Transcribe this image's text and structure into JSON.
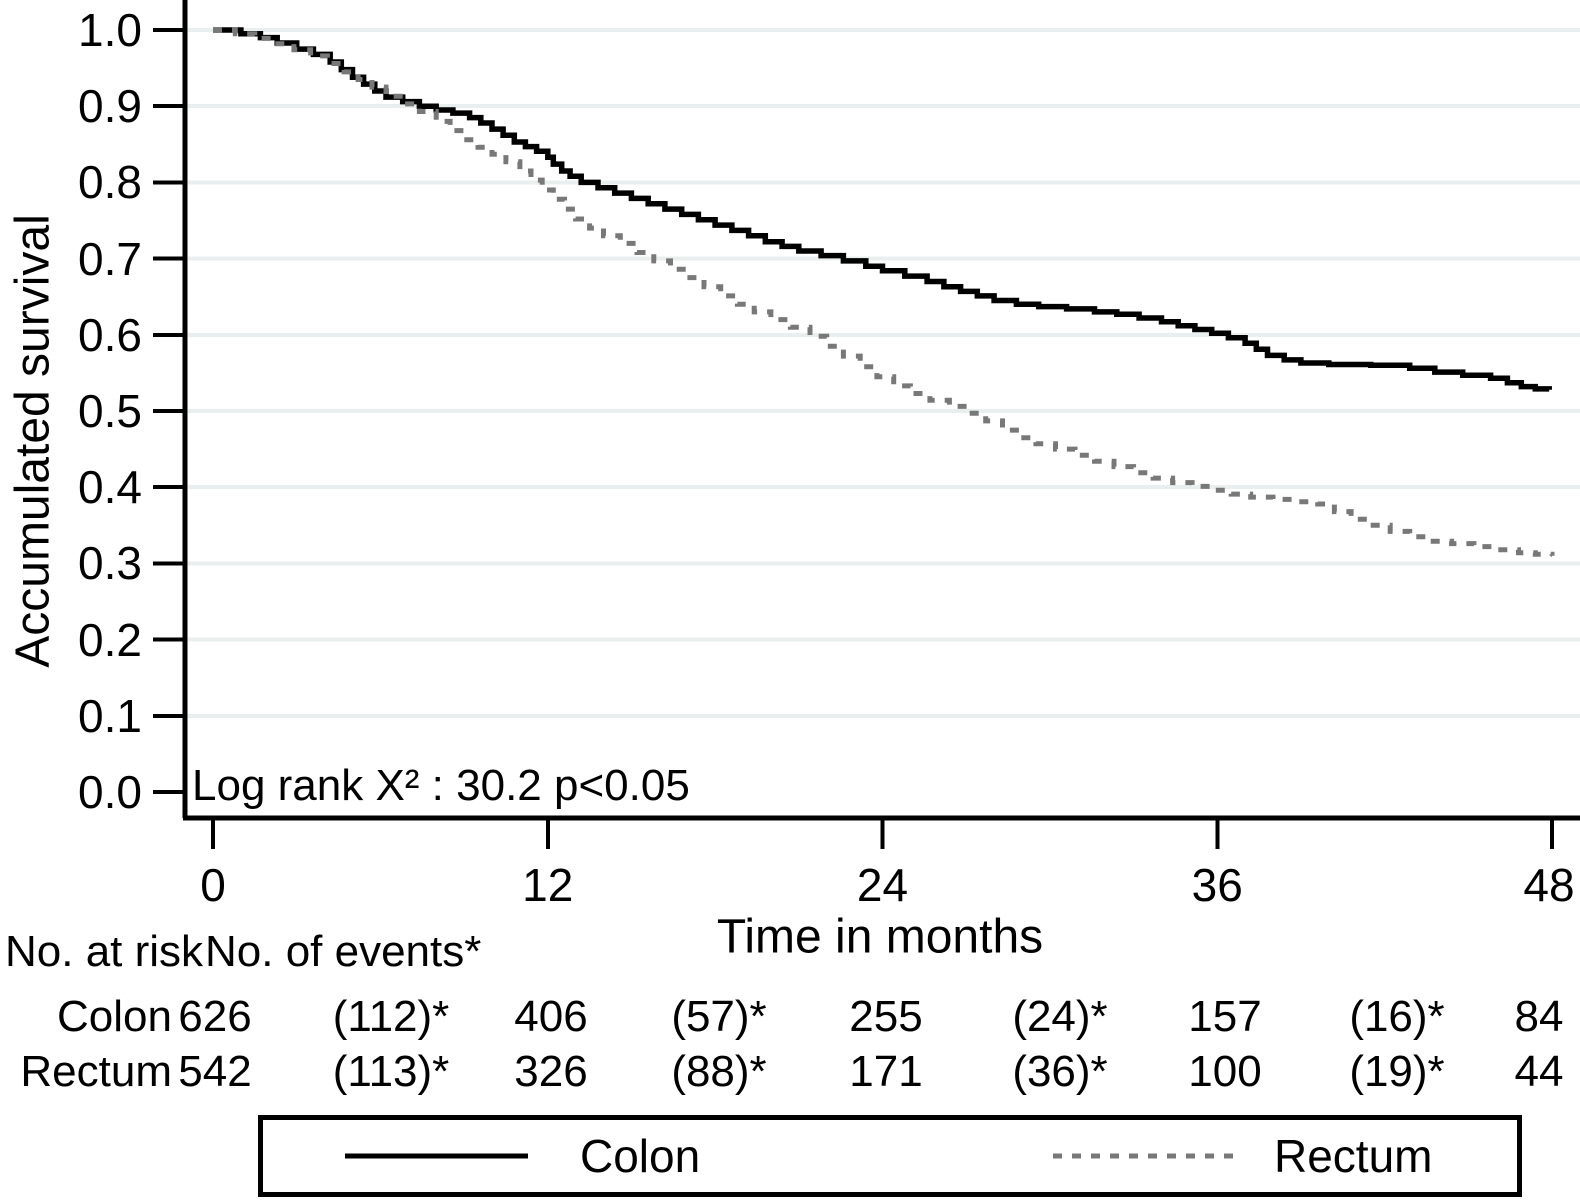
{
  "chart_data": {
    "type": "line",
    "subtype": "kaplan-meier-step-curves",
    "title": "",
    "ylabel": "Accumulated survival",
    "xlabel": "Time in months",
    "annotation": "Log rank X² : 30.2  p<0.05",
    "y_ticks": [
      "0.0",
      "0.1",
      "0.2",
      "0.3",
      "0.4",
      "0.5",
      "0.6",
      "0.7",
      "0.8",
      "0.9",
      "1.0"
    ],
    "y_tick_values": [
      0,
      0.1,
      0.2,
      0.3,
      0.4,
      0.5,
      0.6,
      0.7,
      0.8,
      0.9,
      1.0
    ],
    "x_ticks": [
      "0",
      "12",
      "24",
      "36",
      "48"
    ],
    "x_tick_values": [
      0,
      12,
      24,
      36,
      48
    ],
    "xlim": [
      0,
      48
    ],
    "ylim": [
      0,
      1.0
    ],
    "grid": "horizontal",
    "gridline_color": "#e9efee",
    "axis_color": "#000000",
    "legend_position": "bottom-box",
    "series": [
      {
        "name": "Colon",
        "line_style": "solid",
        "color": "#000000",
        "points": [
          [
            0,
            1
          ],
          [
            1,
            0.995
          ],
          [
            1.7,
            0.99
          ],
          [
            2.3,
            0.983
          ],
          [
            3,
            0.975
          ],
          [
            3.6,
            0.968
          ],
          [
            4.2,
            0.958
          ],
          [
            4.6,
            0.948
          ],
          [
            5,
            0.938
          ],
          [
            5.4,
            0.929
          ],
          [
            5.8,
            0.92
          ],
          [
            6.2,
            0.912
          ],
          [
            6.8,
            0.906
          ],
          [
            7.4,
            0.9
          ],
          [
            8,
            0.895
          ],
          [
            8.6,
            0.891
          ],
          [
            9.2,
            0.885
          ],
          [
            9.6,
            0.878
          ],
          [
            10,
            0.87
          ],
          [
            10.4,
            0.862
          ],
          [
            10.8,
            0.853
          ],
          [
            11.2,
            0.847
          ],
          [
            11.6,
            0.841
          ],
          [
            12,
            0.833
          ],
          [
            12.2,
            0.824
          ],
          [
            12.5,
            0.815
          ],
          [
            12.8,
            0.808
          ],
          [
            13.2,
            0.8
          ],
          [
            13.8,
            0.793
          ],
          [
            14.4,
            0.786
          ],
          [
            15,
            0.779
          ],
          [
            15.6,
            0.772
          ],
          [
            16.2,
            0.765
          ],
          [
            16.8,
            0.758
          ],
          [
            17.4,
            0.751
          ],
          [
            18,
            0.744
          ],
          [
            18.6,
            0.737
          ],
          [
            19.2,
            0.73
          ],
          [
            19.8,
            0.722
          ],
          [
            20.4,
            0.716
          ],
          [
            21,
            0.71
          ],
          [
            21.8,
            0.704
          ],
          [
            22.6,
            0.697
          ],
          [
            23.4,
            0.69
          ],
          [
            24,
            0.684
          ],
          [
            24.8,
            0.677
          ],
          [
            25.6,
            0.67
          ],
          [
            26.2,
            0.663
          ],
          [
            26.8,
            0.657
          ],
          [
            27.4,
            0.651
          ],
          [
            28,
            0.645
          ],
          [
            28.8,
            0.64
          ],
          [
            29.6,
            0.637
          ],
          [
            30.6,
            0.634
          ],
          [
            31.6,
            0.63
          ],
          [
            32.4,
            0.627
          ],
          [
            33.2,
            0.622
          ],
          [
            34,
            0.617
          ],
          [
            34.6,
            0.612
          ],
          [
            35.2,
            0.607
          ],
          [
            35.8,
            0.602
          ],
          [
            36.4,
            0.596
          ],
          [
            37,
            0.589
          ],
          [
            37.4,
            0.581
          ],
          [
            37.8,
            0.573
          ],
          [
            38.4,
            0.567
          ],
          [
            39,
            0.563
          ],
          [
            40,
            0.561
          ],
          [
            41.5,
            0.56
          ],
          [
            42.9,
            0.556
          ],
          [
            43.8,
            0.551
          ],
          [
            44.8,
            0.547
          ],
          [
            45.8,
            0.543
          ],
          [
            46.4,
            0.537
          ],
          [
            46.9,
            0.532
          ],
          [
            47.4,
            0.529
          ],
          [
            47.9,
            0.528
          ]
        ]
      },
      {
        "name": "Rectum",
        "line_style": "dotted",
        "color": "#787878",
        "points": [
          [
            0,
            1
          ],
          [
            0.8,
            0.995
          ],
          [
            1.5,
            0.989
          ],
          [
            2.2,
            0.982
          ],
          [
            2.9,
            0.974
          ],
          [
            3.5,
            0.966
          ],
          [
            4.1,
            0.956
          ],
          [
            4.7,
            0.945
          ],
          [
            5.2,
            0.935
          ],
          [
            5.7,
            0.925
          ],
          [
            6.2,
            0.913
          ],
          [
            6.8,
            0.903
          ],
          [
            7.4,
            0.893
          ],
          [
            8,
            0.88
          ],
          [
            8.5,
            0.868
          ],
          [
            9,
            0.856
          ],
          [
            9.5,
            0.846
          ],
          [
            10,
            0.837
          ],
          [
            10.5,
            0.827
          ],
          [
            11,
            0.815
          ],
          [
            11.4,
            0.803
          ],
          [
            11.8,
            0.79
          ],
          [
            12.2,
            0.778
          ],
          [
            12.6,
            0.765
          ],
          [
            13,
            0.752
          ],
          [
            13.5,
            0.74
          ],
          [
            14,
            0.73
          ],
          [
            14.6,
            0.72
          ],
          [
            15.2,
            0.708
          ],
          [
            15.8,
            0.697
          ],
          [
            16.4,
            0.686
          ],
          [
            17,
            0.675
          ],
          [
            17.6,
            0.663
          ],
          [
            18.2,
            0.651
          ],
          [
            18.8,
            0.64
          ],
          [
            19.4,
            0.63
          ],
          [
            20,
            0.62
          ],
          [
            20.7,
            0.61
          ],
          [
            21.4,
            0.598
          ],
          [
            22,
            0.585
          ],
          [
            22.6,
            0.572
          ],
          [
            23.2,
            0.558
          ],
          [
            23.8,
            0.545
          ],
          [
            24.4,
            0.533
          ],
          [
            25,
            0.523
          ],
          [
            25.7,
            0.514
          ],
          [
            26.4,
            0.506
          ],
          [
            27.1,
            0.497
          ],
          [
            27.7,
            0.487
          ],
          [
            28.3,
            0.475
          ],
          [
            28.9,
            0.465
          ],
          [
            29.5,
            0.457
          ],
          [
            30.2,
            0.45
          ],
          [
            30.9,
            0.442
          ],
          [
            31.6,
            0.434
          ],
          [
            32.3,
            0.427
          ],
          [
            33,
            0.419
          ],
          [
            33.7,
            0.412
          ],
          [
            34.4,
            0.406
          ],
          [
            35.1,
            0.401
          ],
          [
            35.8,
            0.396
          ],
          [
            36.5,
            0.391
          ],
          [
            37.2,
            0.387
          ],
          [
            38,
            0.384
          ],
          [
            38.8,
            0.381
          ],
          [
            39.6,
            0.378
          ],
          [
            40.2,
            0.368
          ],
          [
            40.8,
            0.358
          ],
          [
            41.5,
            0.35
          ],
          [
            42.2,
            0.342
          ],
          [
            42.9,
            0.335
          ],
          [
            43.6,
            0.329
          ],
          [
            44.4,
            0.326
          ],
          [
            45.2,
            0.322
          ],
          [
            46,
            0.318
          ],
          [
            46.8,
            0.314
          ],
          [
            47.4,
            0.312
          ],
          [
            48,
            0.31
          ]
        ]
      }
    ]
  },
  "risk_table": {
    "header_at_risk": "No. at risk",
    "header_events": "No. of events*",
    "column_months": [
      0,
      6,
      12,
      18,
      24,
      30,
      36,
      42,
      48
    ],
    "rows": [
      {
        "label": "Colon",
        "values": [
          "626",
          "(112)*",
          "406",
          "(57)*",
          "255",
          "(24)*",
          "157",
          "(16)*",
          "84"
        ]
      },
      {
        "label": "Rectum",
        "values": [
          "542",
          "(113)*",
          "326",
          "(88)*",
          "171",
          "(36)*",
          "100",
          "(19)*",
          "44"
        ]
      }
    ]
  },
  "legend": {
    "items": [
      {
        "label": "Colon",
        "line_style": "solid",
        "color": "#000000"
      },
      {
        "label": "Rectum",
        "line_style": "dotted",
        "color": "#787878"
      }
    ]
  }
}
